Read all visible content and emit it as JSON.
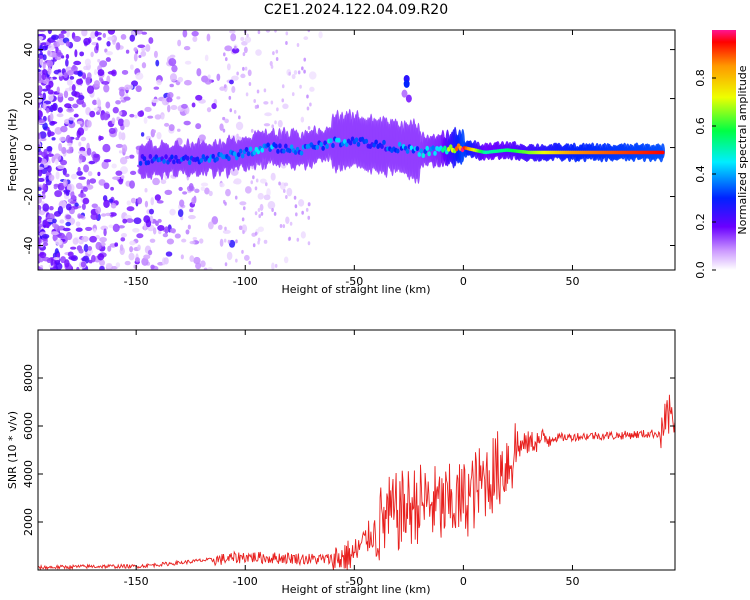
{
  "title": "C2E1.2024.122.04.09.R20",
  "chart_data": [
    {
      "type": "heatmap",
      "xlabel": "Height of straight line (km)",
      "ylabel": "Frequency (Hz)",
      "xlim": [
        -195,
        97
      ],
      "ylim": [
        -50,
        48
      ],
      "xticks": [
        -150,
        -100,
        -50,
        0,
        50
      ],
      "yticks": [
        -40,
        -20,
        0,
        20,
        40
      ],
      "colorbar": {
        "label": "Normalized spectral amplitude",
        "range": [
          0.0,
          1.0
        ],
        "ticks": [
          0.0,
          0.2,
          0.4,
          0.6,
          0.8
        ],
        "colors": [
          "#ffffff",
          "#cc99ff",
          "#6a00ff",
          "#0022ff",
          "#00eeff",
          "#00ff44",
          "#eeff00",
          "#ff9900",
          "#ff0000",
          "#ff1493"
        ]
      },
      "ridge": {
        "x": [
          -148,
          -130,
          -110,
          -90,
          -75,
          -60,
          -50,
          -40,
          -30,
          -20,
          -10,
          0,
          10,
          20,
          30,
          50,
          70,
          92
        ],
        "y": [
          -5,
          -5,
          -4,
          0,
          -1,
          2,
          3,
          1,
          0,
          -2,
          -1,
          0,
          -2,
          -1,
          -2,
          -2,
          -2,
          -2
        ],
        "amplitude": [
          0.3,
          0.3,
          0.35,
          0.4,
          0.35,
          0.4,
          0.35,
          0.3,
          0.35,
          0.4,
          0.45,
          0.95,
          0.5,
          0.55,
          0.65,
          0.85,
          0.9,
          0.95
        ]
      }
    },
    {
      "type": "line",
      "xlabel": "Height of straight line (km)",
      "ylabel": "SNR (10 * v/v)",
      "xlim": [
        -195,
        97
      ],
      "ylim": [
        0,
        10000
      ],
      "xticks": [
        -150,
        -100,
        -50,
        0,
        50
      ],
      "yticks": [
        2000,
        4000,
        6000,
        8000
      ],
      "color": "#e8201e",
      "series": [
        {
          "x": [
            -195,
            -170,
            -150,
            -130,
            -120,
            -110,
            -100,
            -90,
            -80,
            -70,
            -60,
            -50,
            -45,
            -40,
            -35,
            -30,
            -25,
            -20,
            -15,
            -10,
            -5,
            0,
            5,
            10,
            15,
            20,
            25,
            30,
            35,
            40,
            50,
            60,
            70,
            80,
            90,
            95
          ],
          "y": [
            100,
            150,
            150,
            300,
            400,
            450,
            550,
            500,
            500,
            450,
            450,
            650,
            1200,
            1700,
            2200,
            2400,
            2600,
            2800,
            2800,
            2600,
            2800,
            2900,
            3300,
            3800,
            4100,
            4500,
            5100,
            5300,
            5400,
            5500,
            5550,
            5600,
            5600,
            5650,
            5700,
            6500
          ]
        }
      ]
    }
  ]
}
